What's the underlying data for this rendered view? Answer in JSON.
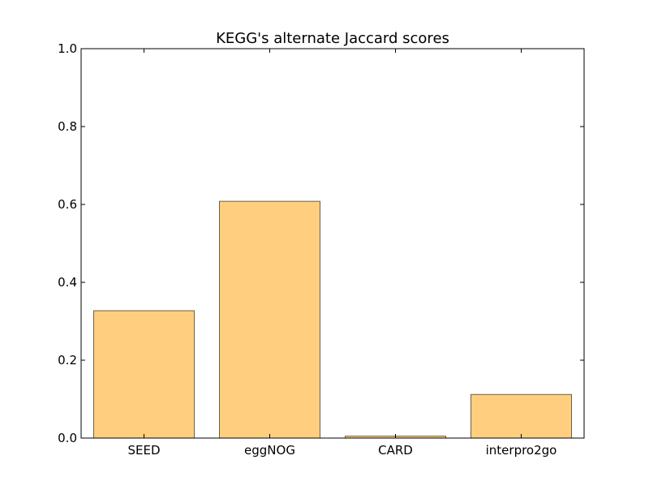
{
  "chart_data": {
    "type": "bar",
    "title": "KEGG's alternate Jaccard scores",
    "xlabel": "",
    "ylabel": "",
    "categories": [
      "SEED",
      "eggNOG",
      "CARD",
      "interpro2go"
    ],
    "values": [
      0.327,
      0.608,
      0.005,
      0.112
    ],
    "ylim": [
      0.0,
      1.0
    ],
    "yticks": [
      "0.0",
      "0.2",
      "0.4",
      "0.6",
      "0.8",
      "1.0"
    ],
    "grid": false,
    "bar_color": "#ffcf7f",
    "bar_edge_color": "#6b6047"
  }
}
